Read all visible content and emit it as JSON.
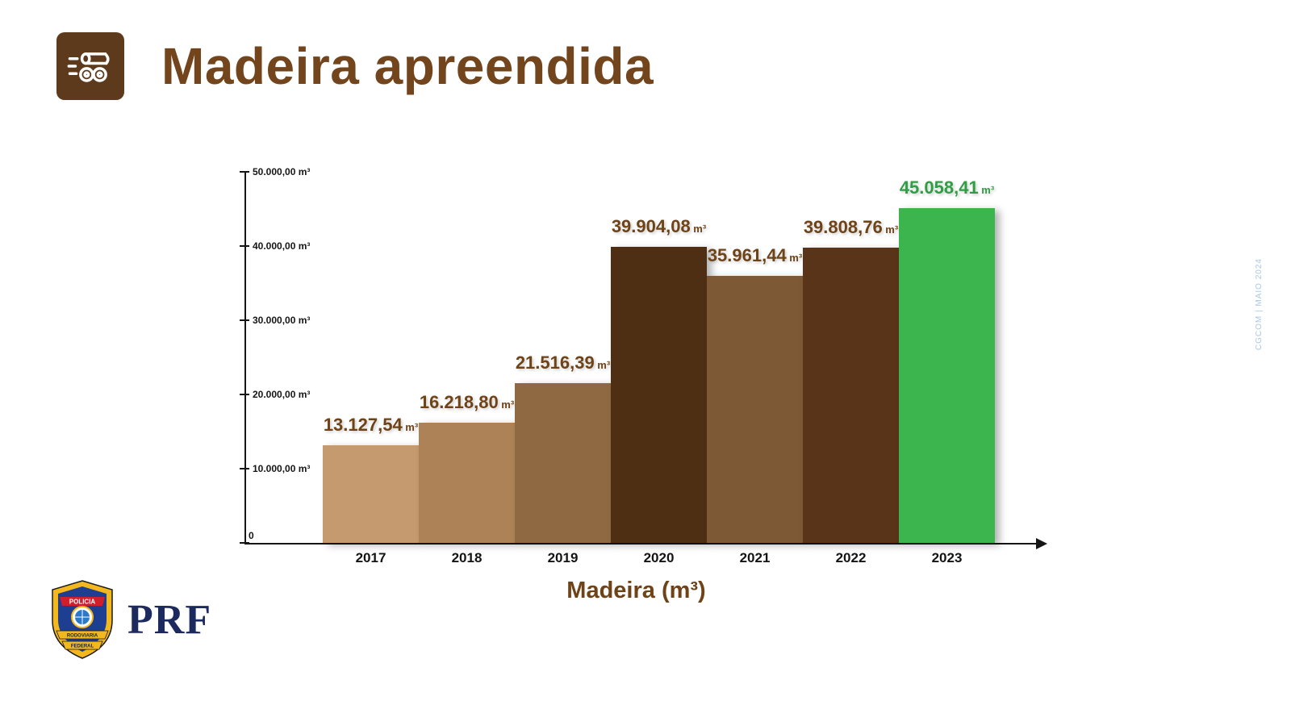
{
  "header": {
    "title": "Madeira apreendida"
  },
  "icons": {
    "header_icon": "wood-logs-icon",
    "footer_logo": "prf-shield-logo"
  },
  "chart_data": {
    "type": "bar",
    "title": "Madeira apreendida",
    "xlabel": "Madeira (m³)",
    "ylabel": "",
    "ylim": [
      0,
      50000
    ],
    "grid": false,
    "legend_position": "none",
    "unit": "m³",
    "y_ticks": [
      {
        "value": 50000,
        "label": "50.000,00 m³"
      },
      {
        "value": 40000,
        "label": "40.000,00 m³"
      },
      {
        "value": 30000,
        "label": "30.000,00 m³"
      },
      {
        "value": 20000,
        "label": "20.000,00 m³"
      },
      {
        "value": 10000,
        "label": "10.000,00 m³"
      },
      {
        "value": 0,
        "label": "0"
      }
    ],
    "categories": [
      "2017",
      "2018",
      "2019",
      "2020",
      "2021",
      "2022",
      "2023"
    ],
    "values": [
      13127.54,
      16218.8,
      21516.39,
      39904.08,
      35961.44,
      39808.76,
      45058.41
    ],
    "value_labels": [
      "13.127,54",
      "16.218,80",
      "21.516,39",
      "39.904,08",
      "35.961,44",
      "39.808,76",
      "45.058,41"
    ],
    "bar_colors": [
      "#c49a6e",
      "#ad8256",
      "#8f6942",
      "#4f2f14",
      "#7d5935",
      "#593419",
      "#3cb54e"
    ],
    "value_label_colors": [
      "#6f4318",
      "#6f4318",
      "#6f4318",
      "#6f4318",
      "#6f4318",
      "#6f4318",
      "#2f9e44"
    ]
  },
  "footer": {
    "brand": "PRF",
    "shield": {
      "top": "POLICIA",
      "middle": "RODOVIARIA",
      "bottom": "FEDERAL"
    }
  },
  "side_note": "CGCOM | MAIO 2024",
  "colors": {
    "title_brown": "#73451c",
    "icon_background": "#5d3a1c",
    "axis": "#151515",
    "brand_navy": "#1c2a5e",
    "highlight_green": "#3cb54e"
  }
}
